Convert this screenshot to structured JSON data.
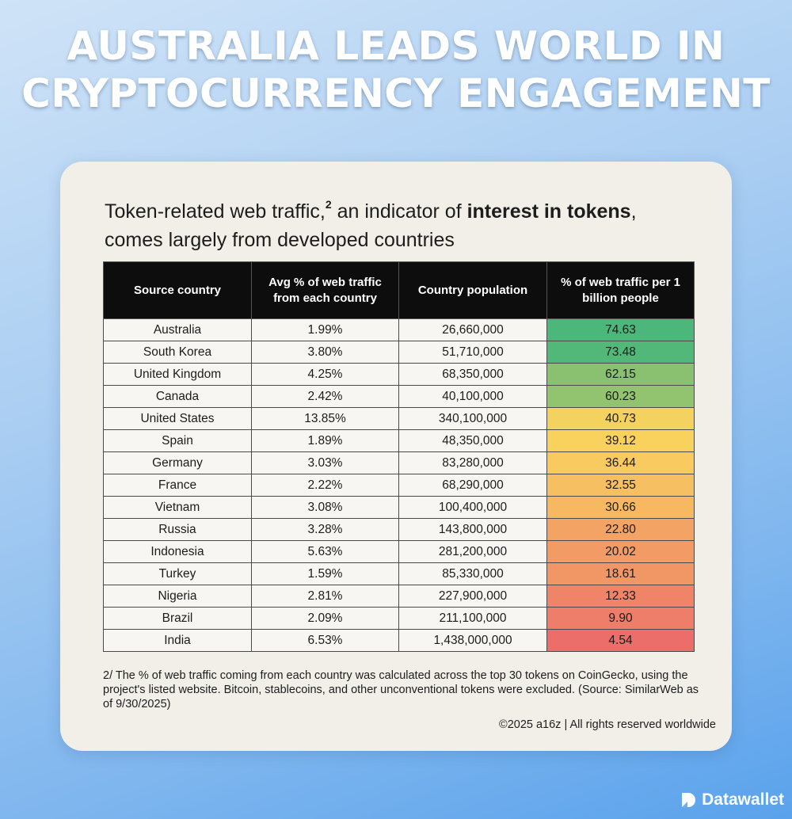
{
  "headline": {
    "line1": "AUSTRALIA LEADS WORLD IN",
    "line2": "CRYPTOCURRENCY ENGAGEMENT"
  },
  "card": {
    "subtitle_pre": "Token-related web traffic,",
    "subtitle_sup": "2",
    "subtitle_mid": " an indicator of ",
    "subtitle_bold": "interest in tokens",
    "subtitle_post": ",",
    "subtitle_line2": "comes largely from developed countries",
    "footnote": "2/ The % of web traffic coming from each country was calculated across the top 30 tokens on CoinGecko, using the project's listed website. Bitcoin, stablecoins, and other unconventional tokens were excluded. (Source: SimilarWeb as of 9/30/2025)",
    "copyright": "©2025 a16z | All rights reserved worldwide"
  },
  "brand": {
    "name": "Datawallet",
    "icon": "datawallet-logo-icon"
  },
  "colors": {
    "heat_high": "#4bb77a",
    "heat_mid": "#f9d35e",
    "heat_low": "#ec6e6b"
  },
  "chart_data": {
    "type": "table",
    "columns": [
      "Source country",
      "Avg % of web traffic from each country",
      "Country population",
      "% of web traffic per 1 billion people"
    ],
    "rows": [
      {
        "country": "Australia",
        "avg": "1.99%",
        "population": "26,660,000",
        "per_billion": 74.63
      },
      {
        "country": "South Korea",
        "avg": "3.80%",
        "population": "51,710,000",
        "per_billion": 73.48
      },
      {
        "country": "United Kingdom",
        "avg": "4.25%",
        "population": "68,350,000",
        "per_billion": 62.15
      },
      {
        "country": "Canada",
        "avg": "2.42%",
        "population": "40,100,000",
        "per_billion": 60.23
      },
      {
        "country": "United States",
        "avg": "13.85%",
        "population": "340,100,000",
        "per_billion": 40.73
      },
      {
        "country": "Spain",
        "avg": "1.89%",
        "population": "48,350,000",
        "per_billion": 39.12
      },
      {
        "country": "Germany",
        "avg": "3.03%",
        "population": "83,280,000",
        "per_billion": 36.44
      },
      {
        "country": "France",
        "avg": "2.22%",
        "population": "68,290,000",
        "per_billion": 32.55
      },
      {
        "country": "Vietnam",
        "avg": "3.08%",
        "population": "100,400,000",
        "per_billion": 30.66
      },
      {
        "country": "Russia",
        "avg": "3.28%",
        "population": "143,800,000",
        "per_billion": 22.8
      },
      {
        "country": "Indonesia",
        "avg": "5.63%",
        "population": "281,200,000",
        "per_billion": 20.02
      },
      {
        "country": "Turkey",
        "avg": "1.59%",
        "population": "85,330,000",
        "per_billion": 18.61
      },
      {
        "country": "Nigeria",
        "avg": "2.81%",
        "population": "227,900,000",
        "per_billion": 12.33
      },
      {
        "country": "Brazil",
        "avg": "2.09%",
        "population": "211,100,000",
        "per_billion": 9.9
      },
      {
        "country": "India",
        "avg": "6.53%",
        "population": "1,438,000,000",
        "per_billion": 4.54
      }
    ]
  }
}
